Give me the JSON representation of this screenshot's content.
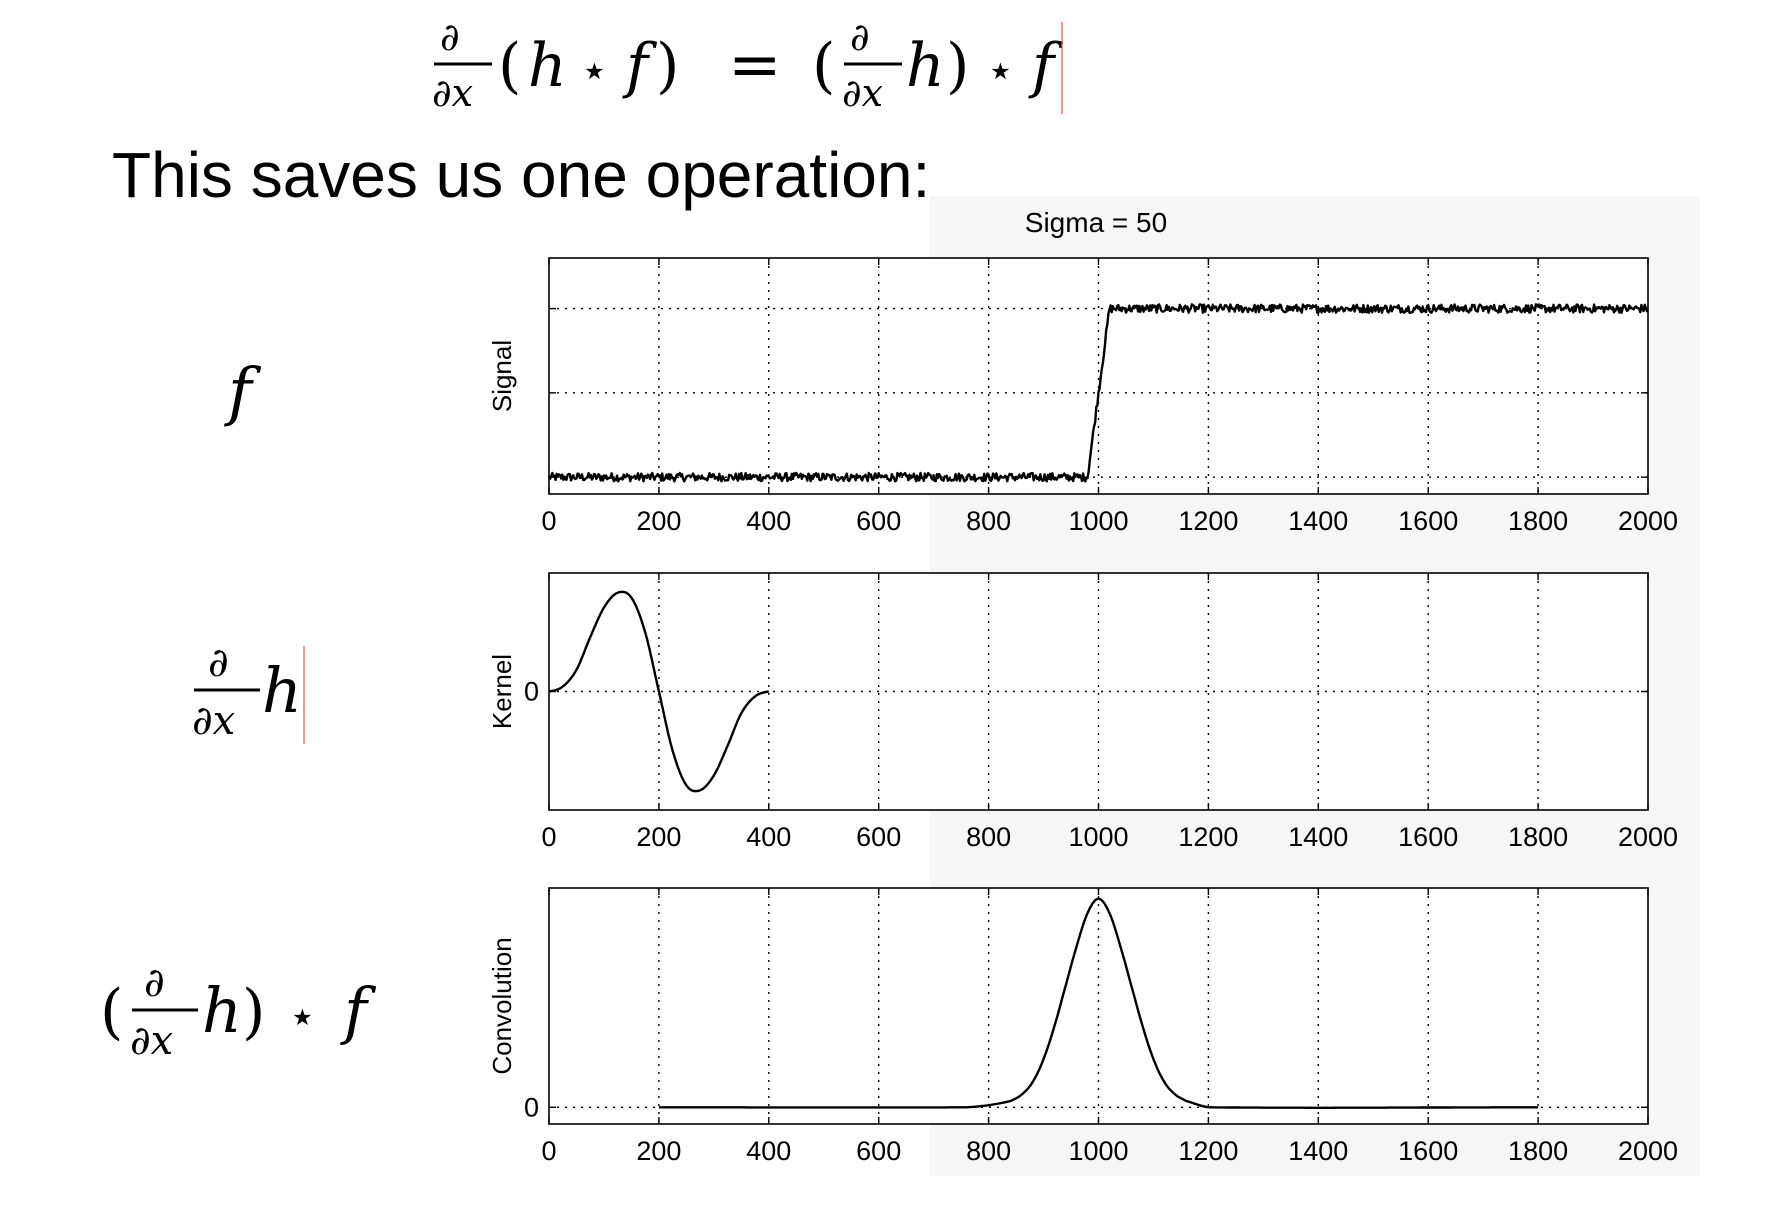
{
  "header": {
    "equation": "∂/∂x (h ⋆ f) = (∂/∂x h) ⋆ f",
    "caption": "This saves us one operation:"
  },
  "row_labels": {
    "signal": "f",
    "kernel": "∂/∂x h",
    "convolution": "(∂/∂x h) ⋆ f"
  },
  "figure_title": "Sigma = 50",
  "colors": {
    "line": "#000000",
    "grid": "#000000",
    "figure_bg": "#f6f6f6",
    "axes_bg": "#ffffff"
  },
  "chart_data": [
    {
      "type": "line",
      "title": "Sigma = 50",
      "xlabel": "",
      "ylabel": "Signal",
      "xlim": [
        0,
        2000
      ],
      "xticks": [
        0,
        200,
        400,
        600,
        800,
        1000,
        1200,
        1400,
        1600,
        1800,
        2000
      ],
      "ylim": [
        -0.1,
        1.3
      ],
      "yticks": [
        0,
        0.5,
        1
      ],
      "ytick_labels": [
        "",
        "",
        ""
      ],
      "grid": true,
      "series": [
        {
          "x": [
            0,
            980,
            1020,
            2000
          ],
          "y": [
            0,
            0,
            1,
            1
          ],
          "noise": 0.025
        }
      ]
    },
    {
      "type": "line",
      "xlabel": "",
      "ylabel": "Kernel",
      "xlim": [
        0,
        2000
      ],
      "xticks": [
        0,
        200,
        400,
        600,
        800,
        1000,
        1200,
        1400,
        1600,
        1800,
        2000
      ],
      "ylim": [
        -1.2,
        1.2
      ],
      "yticks": [
        0
      ],
      "ytick_labels": [
        "0"
      ],
      "grid": true,
      "series": [
        {
          "x": [
            0,
            25,
            50,
            75,
            100,
            125,
            150,
            175,
            200,
            225,
            250,
            275,
            300,
            325,
            350,
            375,
            400
          ],
          "y": [
            0.0,
            0.05,
            0.22,
            0.55,
            0.85,
            1.0,
            0.95,
            0.6,
            0.0,
            -0.6,
            -0.95,
            -1.0,
            -0.85,
            -0.55,
            -0.22,
            -0.05,
            0.0
          ]
        }
      ]
    },
    {
      "type": "line",
      "xlabel": "",
      "ylabel": "Convolution",
      "xlim": [
        0,
        2000
      ],
      "xticks": [
        0,
        200,
        400,
        600,
        800,
        1000,
        1200,
        1400,
        1600,
        1800,
        2000
      ],
      "ylim": [
        -0.08,
        1.05
      ],
      "yticks": [
        0
      ],
      "ytick_labels": [
        "0"
      ],
      "grid": true,
      "series": [
        {
          "x": [
            200,
            760,
            800,
            840,
            860,
            880,
            900,
            920,
            940,
            960,
            980,
            1000,
            1020,
            1040,
            1060,
            1080,
            1100,
            1120,
            1140,
            1160,
            1200,
            1800
          ],
          "y": [
            0,
            0,
            0.01,
            0.03,
            0.06,
            0.12,
            0.23,
            0.39,
            0.58,
            0.77,
            0.93,
            1.0,
            0.93,
            0.77,
            0.58,
            0.39,
            0.23,
            0.12,
            0.06,
            0.03,
            0.0,
            0
          ]
        }
      ]
    }
  ]
}
